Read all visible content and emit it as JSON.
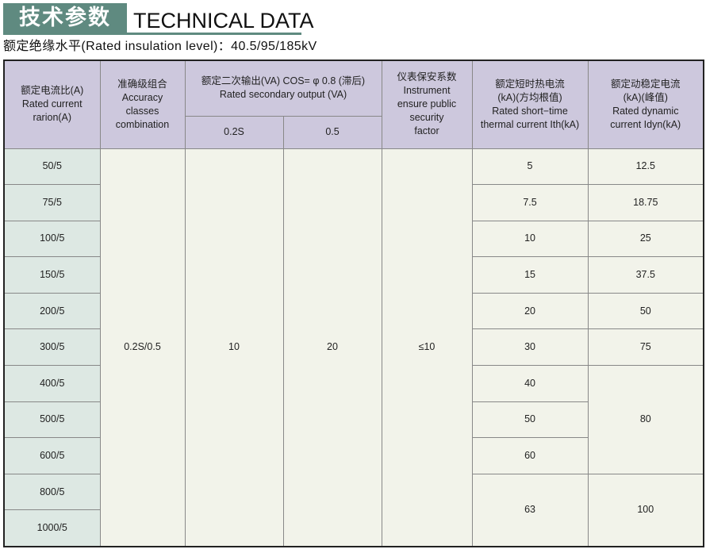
{
  "header": {
    "title_cn": "技术参数",
    "title_en": "TECHNICAL DATA",
    "insulation": "额定绝缘水平(Rated insulation level)：40.5/95/185kV"
  },
  "colors": {
    "title_box": "#5f8a80",
    "header_bg": "#cdc8dd",
    "first_col_bg": "#dde8e3",
    "body_bg": "#f2f3ea"
  },
  "table": {
    "headers": {
      "ratio": [
        "额定电流比(A)",
        "Rated current",
        "rarion(A)"
      ],
      "accuracy": [
        "准确级组合",
        "Accuracy",
        "classes",
        "combination"
      ],
      "output": [
        "额定二次输出(VA) COS= φ 0.8 (滞后)",
        "Rated secondary output (VA)"
      ],
      "output_sub": [
        "0.2S",
        "0.5"
      ],
      "factor": [
        "仪表保安系数",
        "Instrument",
        "ensure public",
        "security",
        "factor"
      ],
      "thermal": [
        "额定短时热电流",
        "(kA)(方均根值)",
        "Rated short−time",
        "thermal current Ith(kA)"
      ],
      "dynamic": [
        "额定动稳定电流",
        "(kA)(峰值)",
        "Rated dynamic",
        "current Idyn(kA)"
      ]
    },
    "ratios": [
      "50/5",
      "75/5",
      "100/5",
      "150/5",
      "200/5",
      "300/5",
      "400/5",
      "500/5",
      "600/5",
      "800/5",
      "1000/5"
    ],
    "accuracy": "0.2S/0.5",
    "output_02s": "10",
    "output_05": "20",
    "factor": "≤10",
    "thermal": [
      "5",
      "7.5",
      "10",
      "15",
      "20",
      "30",
      "40",
      "50",
      "60",
      "63"
    ],
    "dynamic": [
      "12.5",
      "18.75",
      "25",
      "37.5",
      "50",
      "75",
      "80",
      "100"
    ]
  }
}
